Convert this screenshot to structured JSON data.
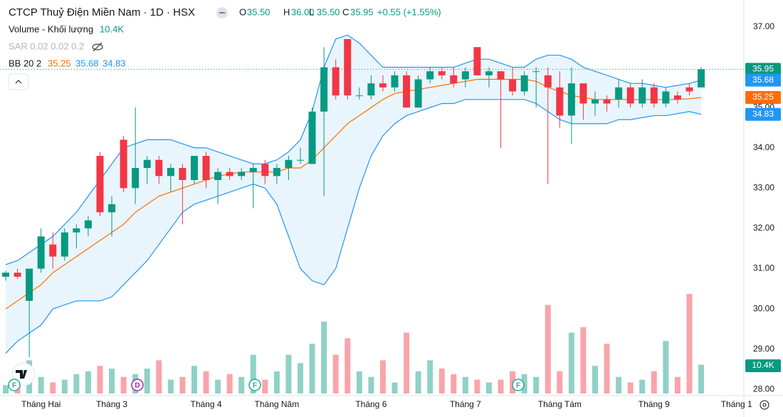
{
  "chart_data": {
    "type": "candlestick",
    "title": "CTCP Thuỷ Điện Miền Nam · 1D · HSX",
    "header": {
      "ohlc": [
        {
          "key": "O",
          "value": "35.50"
        },
        {
          "key": "H",
          "value": "36.00"
        },
        {
          "key": "L",
          "value": "35.50"
        },
        {
          "key": "C",
          "value": "35.95"
        }
      ],
      "change": "+0.55 (+1.55%)"
    },
    "up_color": "#089981",
    "down_color": "#f23645",
    "categories": [
      null,
      null,
      null,
      "Tháng Hai",
      null,
      null,
      null,
      null,
      null,
      "Tháng 3",
      null,
      null,
      null,
      null,
      null,
      null,
      null,
      "Tháng 4",
      null,
      null,
      null,
      null,
      null,
      "Tháng Năm",
      null,
      null,
      null,
      null,
      null,
      null,
      null,
      "Tháng 6",
      null,
      null,
      null,
      null,
      null,
      null,
      null,
      "Tháng 7",
      null,
      null,
      null,
      null,
      null,
      null,
      null,
      "Tháng Tám",
      null,
      null,
      null,
      null,
      null,
      null,
      null,
      "Tháng 9",
      null,
      null,
      null,
      null,
      null,
      null,
      "Tháng 1",
      null
    ],
    "open": [
      30.8,
      30.9,
      30.2,
      31.0,
      31.6,
      31.3,
      31.9,
      32.0,
      33.8,
      32.4,
      34.2,
      33.0,
      33.5,
      33.7,
      33.3,
      33.5,
      33.2,
      33.8,
      33.2,
      33.4,
      33.3,
      33.4,
      33.6,
      33.3,
      33.5,
      33.7,
      33.6,
      34.9,
      36.0,
      36.7,
      35.3,
      35.3,
      35.6,
      35.5,
      35.8,
      35.0,
      35.7,
      35.9,
      35.8,
      35.7,
      36.5,
      35.8,
      35.9,
      35.7,
      35.4,
      35.9,
      35.8,
      35.5,
      34.8,
      35.6,
      35.1,
      35.2,
      35.2,
      35.5,
      35.1,
      35.5,
      35.1,
      35.3,
      35.5,
      35.5,
      null,
      null,
      null,
      null
    ],
    "high": [
      30.95,
      31.0,
      31.0,
      32.0,
      31.9,
      32.0,
      32.1,
      32.3,
      33.9,
      32.8,
      34.3,
      35.0,
      33.8,
      33.8,
      33.6,
      33.6,
      33.8,
      33.9,
      33.5,
      33.5,
      33.5,
      33.6,
      33.7,
      33.6,
      33.8,
      34.0,
      35.0,
      36.5,
      36.2,
      36.7,
      35.5,
      35.8,
      35.8,
      35.9,
      35.9,
      35.8,
      36.0,
      36.0,
      36.0,
      36.0,
      36.5,
      36.0,
      35.9,
      36.0,
      35.9,
      36.0,
      36.0,
      35.9,
      36.0,
      35.6,
      35.4,
      35.3,
      35.7,
      35.6,
      35.7,
      35.6,
      35.5,
      35.4,
      35.6,
      36.0,
      null,
      null,
      null,
      null
    ],
    "low": [
      30.7,
      30.75,
      28.8,
      30.9,
      31.0,
      31.2,
      31.5,
      31.8,
      32.3,
      31.8,
      32.9,
      32.6,
      33.1,
      33.1,
      32.9,
      32.1,
      33.1,
      33.0,
      32.6,
      33.2,
      33.2,
      32.5,
      33.1,
      33.1,
      33.2,
      33.6,
      33.6,
      32.8,
      35.2,
      35.2,
      35.2,
      35.2,
      35.4,
      35.4,
      35.0,
      35.0,
      35.6,
      35.7,
      35.5,
      35.5,
      35.8,
      35.5,
      34.0,
      35.3,
      35.3,
      35.0,
      33.1,
      34.5,
      34.1,
      34.7,
      34.8,
      34.9,
      35.0,
      35.0,
      35.0,
      35.0,
      35.0,
      35.1,
      35.3,
      35.5,
      null,
      null,
      null,
      null
    ],
    "close": [
      30.9,
      30.8,
      31.0,
      31.8,
      31.3,
      31.9,
      32.0,
      32.2,
      32.4,
      32.6,
      33.0,
      33.5,
      33.7,
      33.3,
      33.5,
      33.2,
      33.8,
      33.2,
      33.4,
      33.3,
      33.4,
      33.5,
      33.3,
      33.5,
      33.7,
      33.7,
      34.9,
      36.0,
      35.3,
      35.3,
      35.3,
      35.6,
      35.5,
      35.8,
      35.0,
      35.7,
      35.9,
      35.8,
      35.6,
      35.9,
      35.8,
      35.9,
      35.7,
      35.4,
      35.8,
      35.9,
      35.5,
      34.8,
      35.6,
      35.1,
      35.2,
      35.1,
      35.5,
      35.1,
      35.5,
      35.1,
      35.4,
      35.2,
      35.4,
      35.95,
      null,
      null,
      null,
      null
    ],
    "volume": [
      3000,
      5000,
      12000,
      6000,
      4000,
      5000,
      7000,
      8000,
      10000,
      9000,
      6000,
      7000,
      9000,
      12000,
      5000,
      6000,
      10000,
      8000,
      5000,
      7000,
      6000,
      14000,
      5000,
      8000,
      14000,
      11000,
      18000,
      26000,
      14000,
      20000,
      8000,
      6000,
      12000,
      4000,
      22000,
      8000,
      12000,
      9000,
      7000,
      6000,
      5000,
      4000,
      5000,
      8000,
      7000,
      6000,
      32000,
      8000,
      22000,
      24000,
      10000,
      18000,
      6000,
      4000,
      5000,
      8000,
      19000,
      6000,
      36000,
      10400,
      null,
      null,
      null,
      null
    ],
    "volume_name": "Volume - Khối lượng",
    "volume_label": "10.4K",
    "sar_name": "SAR 0.02 0.02 0.2",
    "bb": {
      "name": "BB 20 2",
      "fill": "#e3f2fd",
      "middle": {
        "label": "35.25",
        "color": "#ff6d00",
        "values": [
          30.0,
          30.2,
          30.4,
          30.6,
          30.9,
          31.1,
          31.3,
          31.5,
          31.7,
          31.9,
          32.1,
          32.4,
          32.6,
          32.8,
          32.9,
          33.0,
          33.1,
          33.2,
          33.3,
          33.35,
          33.4,
          33.4,
          33.4,
          33.4,
          33.5,
          33.5,
          33.7,
          34.0,
          34.3,
          34.6,
          34.8,
          35.0,
          35.2,
          35.35,
          35.4,
          35.45,
          35.5,
          35.55,
          35.6,
          35.65,
          35.7,
          35.7,
          35.7,
          35.7,
          35.7,
          35.65,
          35.5,
          35.4,
          35.3,
          35.25,
          35.2,
          35.2,
          35.2,
          35.2,
          35.2,
          35.2,
          35.2,
          35.2,
          35.22,
          35.25,
          null,
          null,
          null,
          null
        ]
      },
      "upper": {
        "label": "35.68",
        "color": "#2196f3",
        "values": [
          31.1,
          31.2,
          31.4,
          31.6,
          31.8,
          32.1,
          32.4,
          32.8,
          33.2,
          33.6,
          34.0,
          34.1,
          34.2,
          34.2,
          34.2,
          34.1,
          34.0,
          34.0,
          33.9,
          33.8,
          33.7,
          33.6,
          33.6,
          33.7,
          33.9,
          34.2,
          34.9,
          36.0,
          36.7,
          36.8,
          36.6,
          36.3,
          36.0,
          36.0,
          36.0,
          36.0,
          36.0,
          36.0,
          36.0,
          36.1,
          36.2,
          36.2,
          36.1,
          36.0,
          36.0,
          36.2,
          36.3,
          36.3,
          36.2,
          36.0,
          35.9,
          35.8,
          35.7,
          35.6,
          35.6,
          35.55,
          35.5,
          35.55,
          35.6,
          35.68,
          null,
          null,
          null,
          null
        ]
      },
      "lower": {
        "label": "34.83",
        "color": "#2196f3",
        "values": [
          28.9,
          29.2,
          29.4,
          29.6,
          30.0,
          30.1,
          30.2,
          30.2,
          30.2,
          30.3,
          30.6,
          30.9,
          31.2,
          31.6,
          32.0,
          32.4,
          32.6,
          32.7,
          32.8,
          32.9,
          33.0,
          33.1,
          33.0,
          32.6,
          31.8,
          31.0,
          30.7,
          30.6,
          31.0,
          32.0,
          33.0,
          33.8,
          34.3,
          34.6,
          34.8,
          34.9,
          35.0,
          35.1,
          35.1,
          35.2,
          35.2,
          35.2,
          35.2,
          35.2,
          35.2,
          35.1,
          34.9,
          34.7,
          34.6,
          34.6,
          34.6,
          34.6,
          34.7,
          34.7,
          34.75,
          34.8,
          34.8,
          34.85,
          34.9,
          34.83,
          null,
          null,
          null,
          null
        ]
      }
    },
    "ylim": [
      27.9,
      37.67
    ],
    "yticks": [
      {
        "value": 28,
        "label": "28.00"
      },
      {
        "value": 29,
        "label": "29.00"
      },
      {
        "value": 30,
        "label": "30.00"
      },
      {
        "value": 31,
        "label": "31.00"
      },
      {
        "value": 32,
        "label": "32.00"
      },
      {
        "value": 33,
        "label": "33.00"
      },
      {
        "value": 34,
        "label": "34.00"
      },
      {
        "value": 35,
        "label": "35.00"
      },
      {
        "value": 36,
        "label": "36.00"
      },
      {
        "value": 37,
        "label": "37.00"
      }
    ],
    "events": [
      "F",
      "D",
      "F",
      "F"
    ]
  }
}
